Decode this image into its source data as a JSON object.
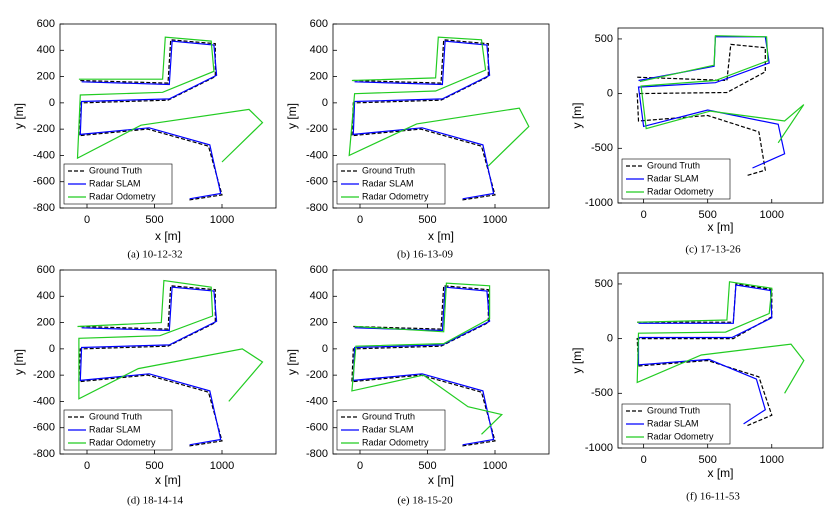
{
  "chart_data": [
    {
      "type": "line",
      "caption": "(a)  10-12-32",
      "x_label": "x [m]",
      "y_label": "y [m]",
      "xlim": [
        -200,
        1400
      ],
      "xticks": [
        0,
        500,
        1000
      ],
      "ylim": [
        -800,
        600
      ],
      "yticks": [
        -800,
        -600,
        -400,
        -200,
        0,
        200,
        400,
        600
      ],
      "series": [
        {
          "name": "Ground Truth",
          "color": "#000000",
          "line_style": "dashed",
          "x": [
            -50,
            600,
            620,
            950,
            950,
            600,
            -50,
            -60,
            450,
            900,
            1000,
            750
          ],
          "y": [
            170,
            150,
            480,
            450,
            200,
            20,
            0,
            -250,
            -200,
            -330,
            -700,
            -740
          ]
        },
        {
          "name": "Radar SLAM",
          "color": "#0000ff",
          "line_style": "solid",
          "x": [
            -40,
            610,
            630,
            940,
            960,
            610,
            -40,
            -50,
            460,
            910,
            990,
            760
          ],
          "y": [
            160,
            140,
            470,
            440,
            210,
            30,
            10,
            -240,
            -190,
            -320,
            -690,
            -730
          ]
        },
        {
          "name": "Radar Odometry",
          "color": "#22cc22",
          "line_style": "solid",
          "x": [
            -60,
            560,
            580,
            920,
            940,
            560,
            -50,
            -70,
            400,
            1200,
            1300,
            1000
          ],
          "y": [
            180,
            180,
            500,
            470,
            240,
            80,
            60,
            -420,
            -170,
            -50,
            -150,
            -450
          ]
        }
      ]
    },
    {
      "type": "line",
      "caption": "(b)  16-13-09",
      "x_label": "x [m]",
      "y_label": "y [m]",
      "xlim": [
        -200,
        1400
      ],
      "xticks": [
        0,
        500,
        1000
      ],
      "ylim": [
        -800,
        600
      ],
      "yticks": [
        -800,
        -600,
        -400,
        -200,
        0,
        200,
        400,
        600
      ],
      "series": [
        {
          "name": "Ground Truth",
          "color": "#000000",
          "line_style": "dashed",
          "x": [
            -50,
            600,
            620,
            950,
            950,
            600,
            -50,
            -60,
            450,
            900,
            1000,
            750
          ],
          "y": [
            170,
            150,
            480,
            450,
            200,
            20,
            0,
            -250,
            -200,
            -330,
            -700,
            -740
          ]
        },
        {
          "name": "Radar SLAM",
          "color": "#0000ff",
          "line_style": "solid",
          "x": [
            -40,
            610,
            630,
            940,
            960,
            610,
            -40,
            -50,
            460,
            910,
            990,
            760
          ],
          "y": [
            160,
            140,
            470,
            440,
            210,
            30,
            10,
            -240,
            -190,
            -320,
            -690,
            -730
          ]
        },
        {
          "name": "Radar Odometry",
          "color": "#22cc22",
          "line_style": "solid",
          "x": [
            -60,
            560,
            580,
            900,
            930,
            560,
            -40,
            -80,
            420,
            1180,
            1250,
            950
          ],
          "y": [
            170,
            190,
            500,
            480,
            250,
            90,
            70,
            -400,
            -160,
            -40,
            -180,
            -480
          ]
        }
      ]
    },
    {
      "type": "line",
      "caption": "(c)  17-13-26",
      "x_label": "x [m]",
      "y_label": "y [m]",
      "xlim": [
        -200,
        1400
      ],
      "xticks": [
        0,
        500,
        1000
      ],
      "ylim": [
        -1000,
        600
      ],
      "yticks": [
        -1000,
        -500,
        0,
        500
      ],
      "series": [
        {
          "name": "Ground Truth",
          "color": "#000000",
          "line_style": "dashed",
          "x": [
            -50,
            650,
            680,
            950,
            950,
            650,
            -50,
            -40,
            500,
            900,
            950,
            800
          ],
          "y": [
            150,
            120,
            450,
            420,
            200,
            10,
            0,
            -250,
            -200,
            -350,
            -700,
            -750
          ]
        },
        {
          "name": "Radar SLAM",
          "color": "#0000ff",
          "line_style": "solid",
          "x": [
            -40,
            550,
            560,
            950,
            980,
            560,
            -40,
            0,
            500,
            1050,
            1100,
            850
          ],
          "y": [
            120,
            250,
            520,
            520,
            280,
            100,
            60,
            -300,
            -150,
            -280,
            -550,
            -680
          ]
        },
        {
          "name": "Radar Odometry",
          "color": "#22cc22",
          "line_style": "solid",
          "x": [
            -30,
            550,
            560,
            960,
            970,
            560,
            -20,
            20,
            520,
            1100,
            1250,
            1050
          ],
          "y": [
            110,
            260,
            530,
            520,
            300,
            120,
            70,
            -320,
            -160,
            -250,
            -100,
            -450
          ]
        }
      ]
    },
    {
      "type": "line",
      "caption": "(d)  18-14-14",
      "x_label": "x [m]",
      "y_label": "y [m]",
      "xlim": [
        -200,
        1400
      ],
      "xticks": [
        0,
        500,
        1000
      ],
      "ylim": [
        -800,
        600
      ],
      "yticks": [
        -800,
        -600,
        -400,
        -200,
        0,
        200,
        400,
        600
      ],
      "series": [
        {
          "name": "Ground Truth",
          "color": "#000000",
          "line_style": "dashed",
          "x": [
            -50,
            600,
            620,
            950,
            950,
            600,
            -50,
            -60,
            450,
            900,
            1000,
            750
          ],
          "y": [
            170,
            150,
            480,
            450,
            200,
            20,
            0,
            -250,
            -200,
            -330,
            -700,
            -740
          ]
        },
        {
          "name": "Radar SLAM",
          "color": "#0000ff",
          "line_style": "solid",
          "x": [
            -40,
            610,
            630,
            940,
            960,
            610,
            -40,
            -50,
            460,
            910,
            990,
            760
          ],
          "y": [
            160,
            140,
            470,
            440,
            210,
            30,
            10,
            -240,
            -190,
            -320,
            -690,
            -730
          ]
        },
        {
          "name": "Radar Odometry",
          "color": "#22cc22",
          "line_style": "solid",
          "x": [
            -70,
            550,
            570,
            920,
            930,
            540,
            -60,
            -60,
            380,
            1150,
            1300,
            1050
          ],
          "y": [
            170,
            200,
            520,
            470,
            250,
            100,
            80,
            -380,
            -150,
            0,
            -100,
            -400
          ]
        }
      ]
    },
    {
      "type": "line",
      "caption": "(e)  18-15-20",
      "x_label": "x [m]",
      "y_label": "y [m]",
      "xlim": [
        -200,
        1400
      ],
      "xticks": [
        0,
        500,
        1000
      ],
      "ylim": [
        -800,
        600
      ],
      "yticks": [
        -800,
        -600,
        -400,
        -200,
        0,
        200,
        400,
        600
      ],
      "series": [
        {
          "name": "Ground Truth",
          "color": "#000000",
          "line_style": "dashed",
          "x": [
            -50,
            600,
            620,
            950,
            950,
            600,
            -50,
            -60,
            450,
            900,
            1000,
            750
          ],
          "y": [
            170,
            150,
            480,
            450,
            200,
            20,
            0,
            -250,
            -200,
            -330,
            -700,
            -740
          ]
        },
        {
          "name": "Radar SLAM",
          "color": "#0000ff",
          "line_style": "solid",
          "x": [
            -40,
            610,
            630,
            940,
            960,
            610,
            -40,
            -50,
            460,
            910,
            990,
            760
          ],
          "y": [
            160,
            140,
            470,
            440,
            210,
            30,
            10,
            -240,
            -190,
            -320,
            -690,
            -730
          ]
        },
        {
          "name": "Radar Odometry",
          "color": "#22cc22",
          "line_style": "solid",
          "x": [
            -40,
            620,
            640,
            960,
            960,
            620,
            -30,
            -60,
            470,
            800,
            1050,
            900
          ],
          "y": [
            170,
            130,
            500,
            480,
            230,
            40,
            20,
            -320,
            -200,
            -440,
            -500,
            -650
          ]
        }
      ]
    },
    {
      "type": "line",
      "caption": "(f)  16-11-53",
      "x_label": "x [m]",
      "y_label": "y [m]",
      "xlim": [
        -200,
        1400
      ],
      "xticks": [
        0,
        500,
        1000
      ],
      "ylim": [
        -1000,
        600
      ],
      "yticks": [
        -1000,
        -500,
        0,
        500
      ],
      "series": [
        {
          "name": "Ground Truth",
          "color": "#000000",
          "line_style": "dashed",
          "x": [
            -50,
            700,
            720,
            1000,
            1000,
            700,
            -50,
            -40,
            500,
            900,
            1000,
            800
          ],
          "y": [
            150,
            150,
            500,
            450,
            200,
            0,
            0,
            -250,
            -200,
            -350,
            -700,
            -800
          ]
        },
        {
          "name": "Radar SLAM",
          "color": "#0000ff",
          "line_style": "solid",
          "x": [
            -40,
            700,
            720,
            990,
            1000,
            690,
            -40,
            -40,
            510,
            880,
            950,
            780
          ],
          "y": [
            140,
            140,
            490,
            440,
            190,
            10,
            10,
            -240,
            -190,
            -370,
            -650,
            -780
          ]
        },
        {
          "name": "Radar Odometry",
          "color": "#22cc22",
          "line_style": "solid",
          "x": [
            -50,
            650,
            670,
            1000,
            980,
            640,
            -40,
            -50,
            450,
            1150,
            1250,
            1100
          ],
          "y": [
            150,
            170,
            520,
            460,
            230,
            60,
            50,
            -400,
            -150,
            -50,
            -200,
            -500
          ]
        }
      ]
    }
  ]
}
